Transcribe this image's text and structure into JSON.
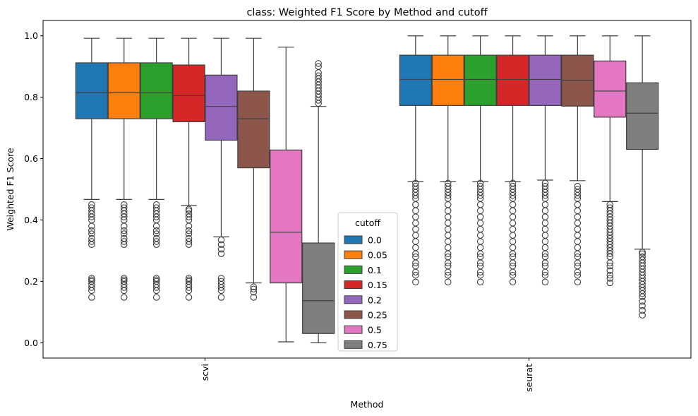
{
  "chart_data": {
    "type": "box",
    "title": "class: Weighted F1 Score by Method and cutoff",
    "xlabel": "Method",
    "ylabel": "Weighted F1 Score",
    "ylim": [
      -0.05,
      1.05
    ],
    "yticks": [
      0.0,
      0.2,
      0.4,
      0.6,
      0.8,
      1.0
    ],
    "ytick_labels": [
      "0.0",
      "0.2",
      "0.4",
      "0.6",
      "0.8",
      "1.0"
    ],
    "categories": [
      "scvi",
      "seurat"
    ],
    "grid": false,
    "legend": {
      "title": "cutoff",
      "placement": "lower-center",
      "entries": [
        "0.0",
        "0.05",
        "0.1",
        "0.15",
        "0.2",
        "0.25",
        "0.5",
        "0.75"
      ]
    },
    "colors": [
      "#1f77b4",
      "#ff7f0e",
      "#2ca02c",
      "#d62728",
      "#9467bd",
      "#8c564b",
      "#e377c2",
      "#7f7f7f"
    ],
    "boxes": {
      "scvi": [
        {
          "q1": 0.73,
          "median": 0.815,
          "q3": 0.912,
          "whisker_low": 0.467,
          "whisker_high": 0.992,
          "outliers": [
            0.148,
            0.17,
            0.18,
            0.19,
            0.2,
            0.205,
            0.21,
            0.32,
            0.33,
            0.34,
            0.355,
            0.365,
            0.38,
            0.4,
            0.41,
            0.42,
            0.43,
            0.44,
            0.45
          ]
        },
        {
          "q1": 0.73,
          "median": 0.815,
          "q3": 0.912,
          "whisker_low": 0.467,
          "whisker_high": 0.992,
          "outliers": [
            0.148,
            0.17,
            0.18,
            0.19,
            0.2,
            0.205,
            0.21,
            0.32,
            0.33,
            0.34,
            0.355,
            0.365,
            0.38,
            0.4,
            0.41,
            0.42,
            0.43,
            0.44,
            0.45
          ]
        },
        {
          "q1": 0.73,
          "median": 0.815,
          "q3": 0.912,
          "whisker_low": 0.467,
          "whisker_high": 0.992,
          "outliers": [
            0.148,
            0.17,
            0.18,
            0.19,
            0.2,
            0.205,
            0.21,
            0.32,
            0.33,
            0.34,
            0.355,
            0.365,
            0.38,
            0.4,
            0.41,
            0.42,
            0.43,
            0.44,
            0.45
          ]
        },
        {
          "q1": 0.72,
          "median": 0.805,
          "q3": 0.905,
          "whisker_low": 0.447,
          "whisker_high": 0.992,
          "outliers": [
            0.148,
            0.17,
            0.18,
            0.19,
            0.2,
            0.205,
            0.21,
            0.32,
            0.33,
            0.34,
            0.355,
            0.365,
            0.38,
            0.4,
            0.41,
            0.42,
            0.43,
            0.435
          ]
        },
        {
          "q1": 0.66,
          "median": 0.77,
          "q3": 0.872,
          "whisker_low": 0.345,
          "whisker_high": 0.992,
          "outliers": [
            0.148,
            0.17,
            0.18,
            0.19,
            0.2,
            0.21,
            0.29,
            0.305,
            0.32,
            0.335
          ]
        },
        {
          "q1": 0.57,
          "median": 0.73,
          "q3": 0.82,
          "whisker_low": 0.195,
          "whisker_high": 0.992,
          "outliers": [
            0.148,
            0.165,
            0.175,
            0.182
          ]
        },
        {
          "q1": 0.195,
          "median": 0.36,
          "q3": 0.628,
          "whisker_low": 0.003,
          "whisker_high": 0.963,
          "outliers": []
        },
        {
          "q1": 0.03,
          "median": 0.137,
          "q3": 0.325,
          "whisker_low": 0.0,
          "whisker_high": 0.77,
          "outliers": [
            0.78,
            0.79,
            0.8,
            0.81,
            0.82,
            0.83,
            0.84,
            0.85,
            0.86,
            0.87,
            0.88,
            0.9,
            0.91
          ]
        }
      ],
      "seurat": [
        {
          "q1": 0.773,
          "median": 0.858,
          "q3": 0.937,
          "whisker_low": 0.525,
          "whisker_high": 1.0,
          "outliers": [
            0.198,
            0.22,
            0.23,
            0.25,
            0.26,
            0.28,
            0.29,
            0.31,
            0.33,
            0.35,
            0.37,
            0.39,
            0.41,
            0.43,
            0.45,
            0.47,
            0.48,
            0.49,
            0.5,
            0.51,
            0.52
          ]
        },
        {
          "q1": 0.773,
          "median": 0.858,
          "q3": 0.937,
          "whisker_low": 0.525,
          "whisker_high": 1.0,
          "outliers": [
            0.198,
            0.22,
            0.23,
            0.25,
            0.26,
            0.28,
            0.29,
            0.31,
            0.33,
            0.35,
            0.37,
            0.39,
            0.41,
            0.43,
            0.45,
            0.47,
            0.48,
            0.49,
            0.5,
            0.51,
            0.52
          ]
        },
        {
          "q1": 0.773,
          "median": 0.858,
          "q3": 0.937,
          "whisker_low": 0.525,
          "whisker_high": 1.0,
          "outliers": [
            0.198,
            0.22,
            0.23,
            0.25,
            0.26,
            0.28,
            0.29,
            0.31,
            0.33,
            0.35,
            0.37,
            0.39,
            0.41,
            0.43,
            0.45,
            0.47,
            0.48,
            0.49,
            0.5,
            0.51,
            0.52
          ]
        },
        {
          "q1": 0.773,
          "median": 0.858,
          "q3": 0.937,
          "whisker_low": 0.525,
          "whisker_high": 1.0,
          "outliers": [
            0.198,
            0.22,
            0.23,
            0.25,
            0.26,
            0.28,
            0.29,
            0.31,
            0.33,
            0.35,
            0.37,
            0.39,
            0.41,
            0.43,
            0.45,
            0.47,
            0.48,
            0.49,
            0.5,
            0.51,
            0.52
          ]
        },
        {
          "q1": 0.773,
          "median": 0.858,
          "q3": 0.937,
          "whisker_low": 0.53,
          "whisker_high": 1.0,
          "outliers": [
            0.198,
            0.22,
            0.23,
            0.25,
            0.26,
            0.28,
            0.29,
            0.31,
            0.33,
            0.35,
            0.37,
            0.39,
            0.41,
            0.43,
            0.45,
            0.47,
            0.48,
            0.49,
            0.5,
            0.51,
            0.52
          ]
        },
        {
          "q1": 0.771,
          "median": 0.855,
          "q3": 0.937,
          "whisker_low": 0.528,
          "whisker_high": 1.0,
          "outliers": [
            0.198,
            0.22,
            0.23,
            0.25,
            0.26,
            0.28,
            0.29,
            0.31,
            0.33,
            0.35,
            0.37,
            0.39,
            0.41,
            0.43,
            0.45,
            0.47,
            0.48,
            0.49,
            0.5,
            0.51
          ]
        },
        {
          "q1": 0.735,
          "median": 0.82,
          "q3": 0.918,
          "whisker_low": 0.46,
          "whisker_high": 1.0,
          "outliers": [
            0.195,
            0.21,
            0.22,
            0.235,
            0.25,
            0.26,
            0.28,
            0.29,
            0.3,
            0.31,
            0.32,
            0.33,
            0.34,
            0.35,
            0.36,
            0.37,
            0.38,
            0.39,
            0.4,
            0.41,
            0.42,
            0.43,
            0.44,
            0.45
          ]
        },
        {
          "q1": 0.63,
          "median": 0.748,
          "q3": 0.847,
          "whisker_low": 0.305,
          "whisker_high": 1.0,
          "outliers": [
            0.09,
            0.105,
            0.12,
            0.135,
            0.15,
            0.16,
            0.17,
            0.18,
            0.19,
            0.2,
            0.21,
            0.22,
            0.23,
            0.24,
            0.25,
            0.26,
            0.27,
            0.28,
            0.29,
            0.295
          ]
        }
      ]
    }
  }
}
